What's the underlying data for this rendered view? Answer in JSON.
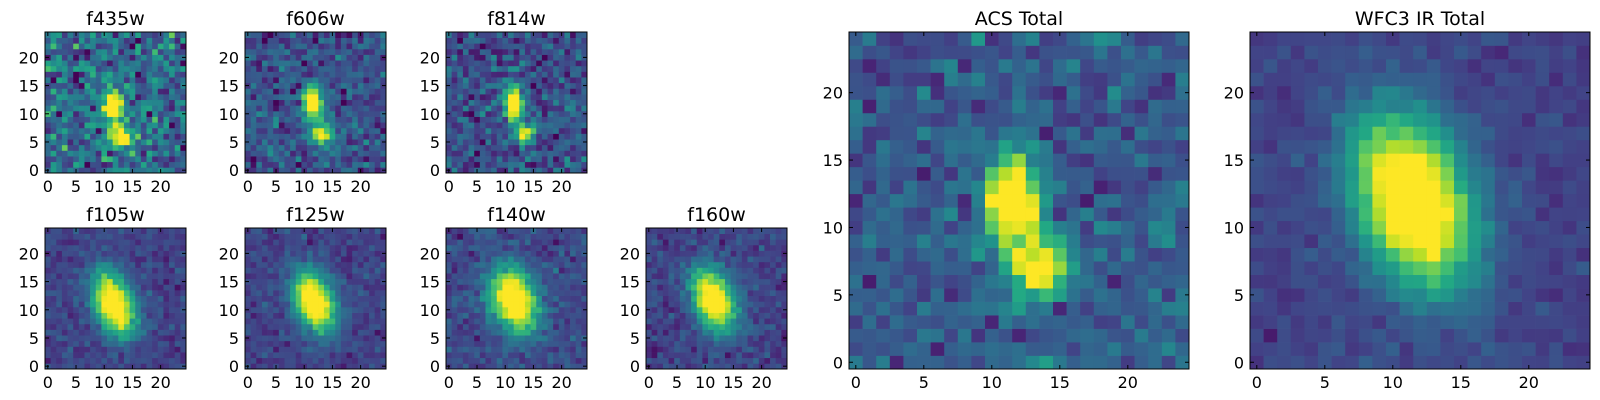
{
  "chart_data": [
    {
      "type": "heatmap",
      "title": "f435w",
      "xlim": [
        -0.5,
        24.5
      ],
      "ylim": [
        -0.5,
        24.5
      ],
      "xticks": [
        0,
        5,
        10,
        15,
        20
      ],
      "yticks": [
        0,
        5,
        10,
        15,
        20
      ],
      "colormap": "viridis",
      "grid": false,
      "noise": 0.85,
      "seed": 11,
      "sources": [
        {
          "x": 11.5,
          "y": 11.5,
          "sx": 1.3,
          "sy": 2.0,
          "amp": 1.0
        },
        {
          "x": 13.0,
          "y": 6.0,
          "sx": 1.4,
          "sy": 1.3,
          "amp": 0.85
        }
      ],
      "background": 0.35
    },
    {
      "type": "heatmap",
      "title": "f606w",
      "xlim": [
        -0.5,
        24.5
      ],
      "ylim": [
        -0.5,
        24.5
      ],
      "xticks": [
        0,
        5,
        10,
        15,
        20
      ],
      "yticks": [
        0,
        5,
        10,
        15,
        20
      ],
      "colormap": "viridis",
      "grid": false,
      "noise": 0.55,
      "seed": 23,
      "sources": [
        {
          "x": 11.5,
          "y": 12.0,
          "sx": 1.2,
          "sy": 2.0,
          "amp": 1.0
        },
        {
          "x": 13.0,
          "y": 6.5,
          "sx": 1.3,
          "sy": 1.4,
          "amp": 0.8
        }
      ],
      "background": 0.25
    },
    {
      "type": "heatmap",
      "title": "f814w",
      "xlim": [
        -0.5,
        24.5
      ],
      "ylim": [
        -0.5,
        24.5
      ],
      "xticks": [
        0,
        5,
        10,
        15,
        20
      ],
      "yticks": [
        0,
        5,
        10,
        15,
        20
      ],
      "colormap": "viridis",
      "grid": false,
      "noise": 0.6,
      "seed": 37,
      "sources": [
        {
          "x": 11.5,
          "y": 12.0,
          "sx": 1.1,
          "sy": 2.0,
          "amp": 1.0
        },
        {
          "x": 13.5,
          "y": 6.5,
          "sx": 1.3,
          "sy": 1.3,
          "amp": 0.75
        }
      ],
      "background": 0.25
    },
    {
      "type": "heatmap",
      "title": "f105w",
      "xlim": [
        -0.5,
        24.5
      ],
      "ylim": [
        -0.5,
        24.5
      ],
      "xticks": [
        0,
        5,
        10,
        15,
        20
      ],
      "yticks": [
        0,
        5,
        10,
        15,
        20
      ],
      "colormap": "viridis",
      "grid": false,
      "noise": 0.3,
      "seed": 41,
      "sources": [
        {
          "x": 11.8,
          "y": 11.0,
          "sx": 2.3,
          "sy": 4.0,
          "amp": 1.05,
          "tilt": -0.35
        }
      ],
      "background": 0.2
    },
    {
      "type": "heatmap",
      "title": "f125w",
      "xlim": [
        -0.5,
        24.5
      ],
      "ylim": [
        -0.5,
        24.5
      ],
      "xticks": [
        0,
        5,
        10,
        15,
        20
      ],
      "yticks": [
        0,
        5,
        10,
        15,
        20
      ],
      "colormap": "viridis",
      "grid": false,
      "noise": 0.3,
      "seed": 53,
      "sources": [
        {
          "x": 11.8,
          "y": 11.5,
          "sx": 2.3,
          "sy": 3.8,
          "amp": 1.05,
          "tilt": -0.35
        }
      ],
      "background": 0.2
    },
    {
      "type": "heatmap",
      "title": "f140w",
      "xlim": [
        -0.5,
        24.5
      ],
      "ylim": [
        -0.5,
        24.5
      ],
      "xticks": [
        0,
        5,
        10,
        15,
        20
      ],
      "yticks": [
        0,
        5,
        10,
        15,
        20
      ],
      "colormap": "viridis",
      "grid": false,
      "noise": 0.32,
      "seed": 67,
      "sources": [
        {
          "x": 11.5,
          "y": 11.8,
          "sx": 2.6,
          "sy": 4.0,
          "amp": 1.05,
          "tilt": -0.35
        }
      ],
      "background": 0.22
    },
    {
      "type": "heatmap",
      "title": "f160w",
      "xlim": [
        -0.5,
        24.5
      ],
      "ylim": [
        -0.5,
        24.5
      ],
      "xticks": [
        0,
        5,
        10,
        15,
        20
      ],
      "yticks": [
        0,
        5,
        10,
        15,
        20
      ],
      "colormap": "viridis",
      "grid": false,
      "noise": 0.33,
      "seed": 79,
      "sources": [
        {
          "x": 11.5,
          "y": 11.8,
          "sx": 2.4,
          "sy": 3.9,
          "amp": 1.05,
          "tilt": -0.35
        }
      ],
      "background": 0.2
    },
    {
      "type": "heatmap",
      "title": "ACS Total",
      "xlim": [
        -0.5,
        24.5
      ],
      "ylim": [
        -0.5,
        24.5
      ],
      "xticks": [
        0,
        5,
        10,
        15,
        20
      ],
      "yticks": [
        0,
        5,
        10,
        15,
        20
      ],
      "colormap": "viridis",
      "grid": false,
      "noise": 0.5,
      "seed": 97,
      "sources": [
        {
          "x": 11.5,
          "y": 12.0,
          "sx": 1.3,
          "sy": 2.3,
          "amp": 1.05
        },
        {
          "x": 13.5,
          "y": 7.0,
          "sx": 1.6,
          "sy": 1.6,
          "amp": 0.85
        }
      ],
      "background": 0.28
    },
    {
      "type": "heatmap",
      "title": "WFC3 IR Total",
      "xlim": [
        -0.5,
        24.5
      ],
      "ylim": [
        -0.5,
        24.5
      ],
      "xticks": [
        0,
        5,
        10,
        15,
        20
      ],
      "yticks": [
        0,
        5,
        10,
        15,
        20
      ],
      "colormap": "viridis",
      "grid": false,
      "noise": 0.2,
      "seed": 113,
      "sources": [
        {
          "x": 11.5,
          "y": 12.0,
          "sx": 2.8,
          "sy": 4.5,
          "amp": 1.1,
          "tilt": -0.35
        }
      ],
      "background": 0.2
    }
  ]
}
